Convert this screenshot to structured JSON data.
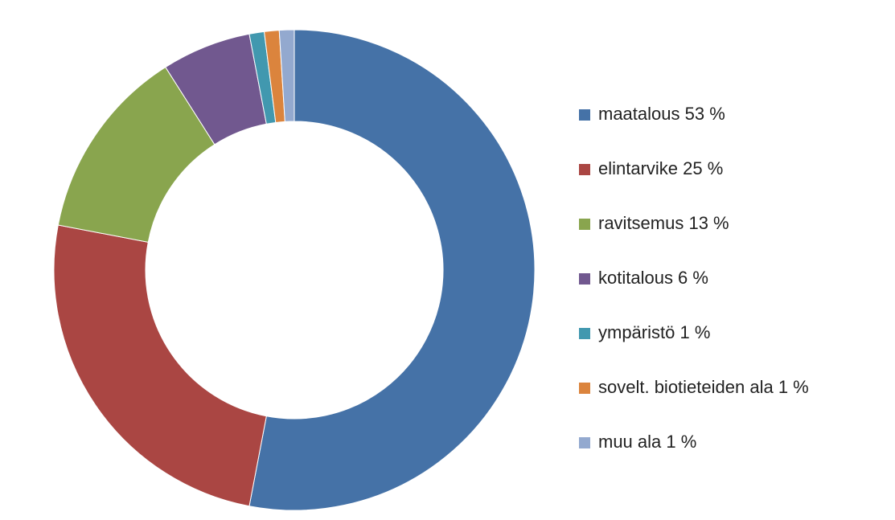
{
  "chart_data": {
    "type": "donut",
    "categories": [
      "maatalous 53 %",
      "elintarvike 25 %",
      "ravitsemus 13 %",
      "kotitalous 6 %",
      "ympäristö 1 %",
      "sovelt. biotieteiden ala 1 %",
      "muu ala 1 %"
    ],
    "values": [
      53,
      25,
      13,
      6,
      1,
      1,
      1
    ],
    "colors": [
      "#4572a7",
      "#aa4643",
      "#89a54e",
      "#71588f",
      "#4198af",
      "#db843d",
      "#93a9cf"
    ],
    "legend": "right"
  }
}
